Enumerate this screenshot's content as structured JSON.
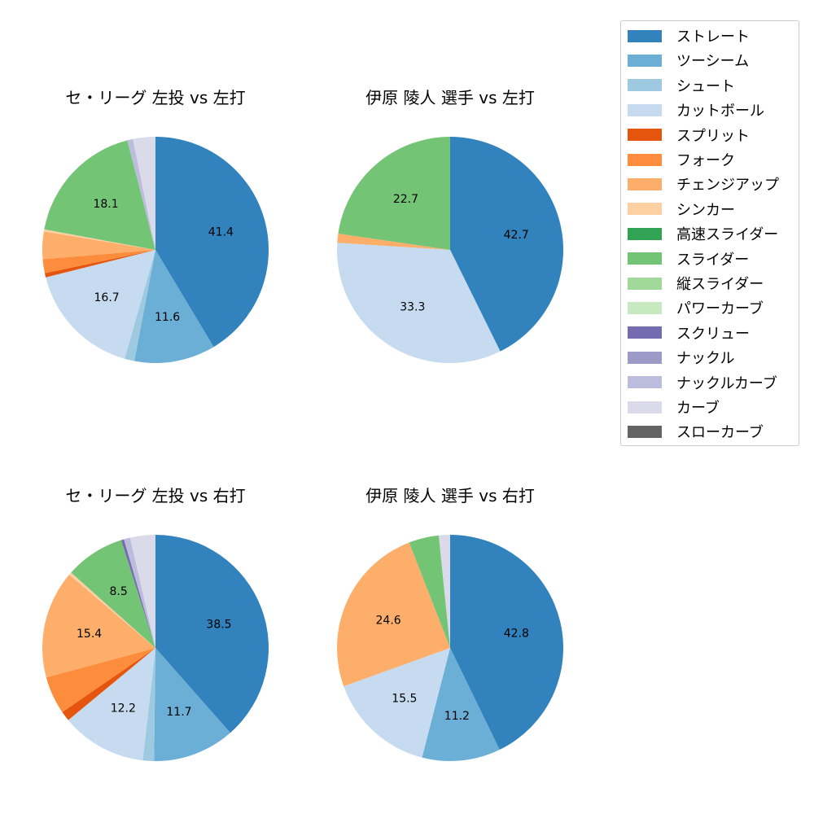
{
  "legend": {
    "items": [
      {
        "label": "ストレート",
        "color": "#3182bd"
      },
      {
        "label": "ツーシーム",
        "color": "#6baed6"
      },
      {
        "label": "シュート",
        "color": "#9ecae1"
      },
      {
        "label": "カットボール",
        "color": "#c6dbef"
      },
      {
        "label": "スプリット",
        "color": "#e6550d"
      },
      {
        "label": "フォーク",
        "color": "#fd8d3c"
      },
      {
        "label": "チェンジアップ",
        "color": "#fdae6b"
      },
      {
        "label": "シンカー",
        "color": "#fdd0a2"
      },
      {
        "label": "高速スライダー",
        "color": "#31a354"
      },
      {
        "label": "スライダー",
        "color": "#74c476"
      },
      {
        "label": "縦スライダー",
        "color": "#a1d99b"
      },
      {
        "label": "パワーカーブ",
        "color": "#c7e9c0"
      },
      {
        "label": "スクリュー",
        "color": "#756bb1"
      },
      {
        "label": "ナックル",
        "color": "#9e9ac8"
      },
      {
        "label": "ナックルカーブ",
        "color": "#bcbddc"
      },
      {
        "label": "カーブ",
        "color": "#dadaeb"
      },
      {
        "label": "スローカーブ",
        "color": "#636363"
      }
    ]
  },
  "chart_data": [
    {
      "type": "pie",
      "title": "セ・リーグ 左投 vs 左打",
      "start_angle": "12 o'clock, clockwise",
      "slices": [
        {
          "label": "ストレート",
          "value": 41.4,
          "show_label": true
        },
        {
          "label": "ツーシーム",
          "value": 11.6,
          "show_label": true
        },
        {
          "label": "シュート",
          "value": 1.4,
          "show_label": false
        },
        {
          "label": "カットボール",
          "value": 16.7,
          "show_label": true
        },
        {
          "label": "スプリット",
          "value": 0.6,
          "show_label": false
        },
        {
          "label": "フォーク",
          "value": 2.0,
          "show_label": false
        },
        {
          "label": "チェンジアップ",
          "value": 3.9,
          "show_label": false
        },
        {
          "label": "シンカー",
          "value": 0.3,
          "show_label": false
        },
        {
          "label": "スライダー",
          "value": 18.1,
          "show_label": true
        },
        {
          "label": "ナックルカーブ",
          "value": 0.8,
          "show_label": false
        },
        {
          "label": "カーブ",
          "value": 3.2,
          "show_label": false
        }
      ]
    },
    {
      "type": "pie",
      "title": "伊原 陵人 選手 vs 左打",
      "start_angle": "12 o'clock, clockwise",
      "slices": [
        {
          "label": "ストレート",
          "value": 42.7,
          "show_label": true
        },
        {
          "label": "カットボール",
          "value": 33.3,
          "show_label": true
        },
        {
          "label": "チェンジアップ",
          "value": 1.3,
          "show_label": false
        },
        {
          "label": "スライダー",
          "value": 22.7,
          "show_label": true
        }
      ]
    },
    {
      "type": "pie",
      "title": "セ・リーグ 左投 vs 右打",
      "start_angle": "12 o'clock, clockwise",
      "slices": [
        {
          "label": "ストレート",
          "value": 38.5,
          "show_label": true
        },
        {
          "label": "ツーシーム",
          "value": 11.7,
          "show_label": true
        },
        {
          "label": "シュート",
          "value": 1.6,
          "show_label": false
        },
        {
          "label": "カットボール",
          "value": 12.2,
          "show_label": true
        },
        {
          "label": "スプリット",
          "value": 1.4,
          "show_label": false
        },
        {
          "label": "フォーク",
          "value": 5.4,
          "show_label": false
        },
        {
          "label": "チェンジアップ",
          "value": 15.4,
          "show_label": true
        },
        {
          "label": "シンカー",
          "value": 0.4,
          "show_label": false
        },
        {
          "label": "スライダー",
          "value": 8.5,
          "show_label": true
        },
        {
          "label": "スクリュー",
          "value": 0.4,
          "show_label": false
        },
        {
          "label": "ナックルカーブ",
          "value": 0.9,
          "show_label": false
        },
        {
          "label": "カーブ",
          "value": 3.6,
          "show_label": false
        }
      ]
    },
    {
      "type": "pie",
      "title": "伊原 陵人 選手 vs 右打",
      "start_angle": "12 o'clock, clockwise",
      "slices": [
        {
          "label": "ストレート",
          "value": 42.8,
          "show_label": true
        },
        {
          "label": "ツーシーム",
          "value": 11.2,
          "show_label": true
        },
        {
          "label": "カットボール",
          "value": 15.5,
          "show_label": true
        },
        {
          "label": "チェンジアップ",
          "value": 24.6,
          "show_label": true
        },
        {
          "label": "スライダー",
          "value": 4.3,
          "show_label": false
        },
        {
          "label": "カーブ",
          "value": 1.6,
          "show_label": false
        }
      ]
    }
  ]
}
